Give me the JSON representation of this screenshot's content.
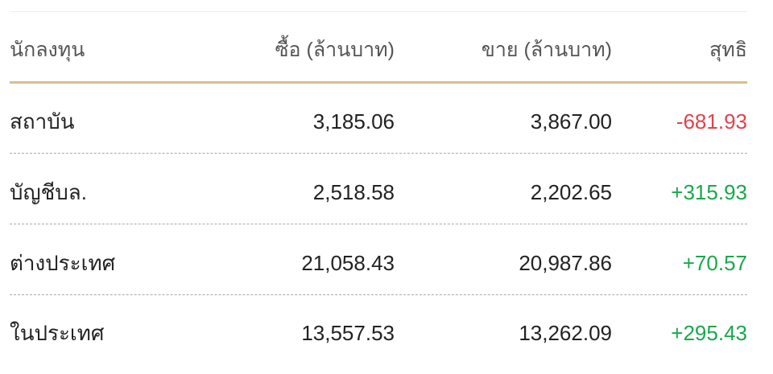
{
  "table": {
    "headers": [
      "นักลงทุน",
      "ซื้อ (ล้านบาท)",
      "ขาย (ล้านบาท)",
      "สุทธิ"
    ],
    "rows": [
      {
        "investor": "สถาบัน",
        "buy": "3,185.06",
        "sell": "3,867.00",
        "net": "-681.93",
        "net_sign": "negative"
      },
      {
        "investor": "บัญชีบล.",
        "buy": "2,518.58",
        "sell": "2,202.65",
        "net": "+315.93",
        "net_sign": "positive"
      },
      {
        "investor": "ต่างประเทศ",
        "buy": "21,058.43",
        "sell": "20,987.86",
        "net": "+70.57",
        "net_sign": "positive"
      },
      {
        "investor": "ในประเทศ",
        "buy": "13,557.53",
        "sell": "13,262.09",
        "net": "+295.43",
        "net_sign": "positive"
      }
    ]
  },
  "colors": {
    "negative": "#e0434b",
    "positive": "#1aa84b",
    "header_rule": "#d8c08a"
  }
}
